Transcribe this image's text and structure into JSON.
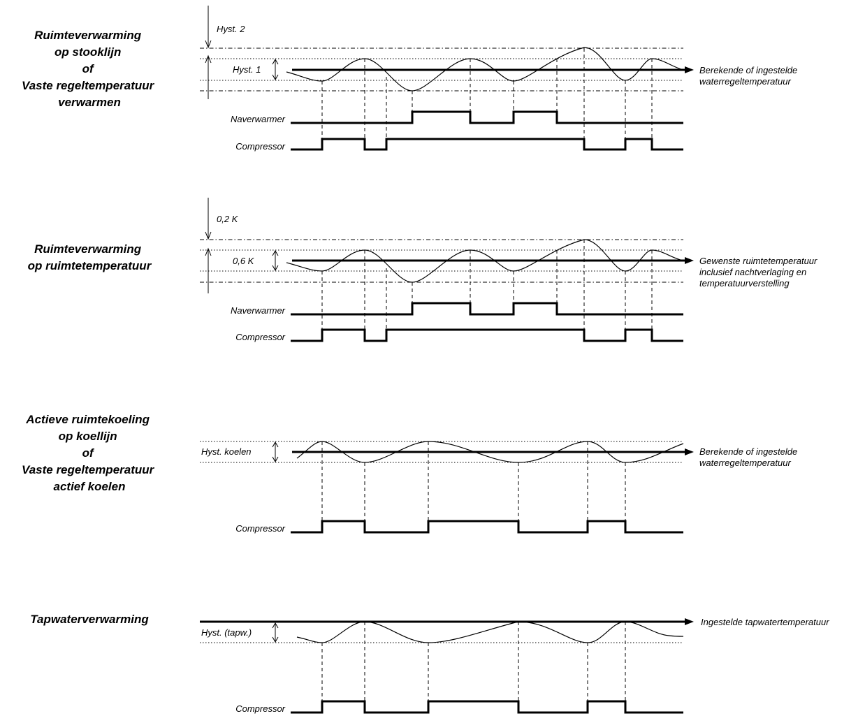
{
  "sections": [
    {
      "title_lines": [
        "Ruimteverwarming",
        "op stooklijn",
        "of",
        "Vaste regeltemperatuur",
        "verwarmen"
      ],
      "outer_hysteresis_label": "Hyst. 2",
      "hysteresis_label": "Hyst. 1",
      "target_note_lines": [
        "Berekende of ingestelde",
        "waterregeltemperatuur"
      ],
      "signals": [
        {
          "label": "Naverwarmer",
          "on_intervals": [
            [
              590,
              673
            ],
            [
              735,
              797
            ]
          ]
        },
        {
          "label": "Compressor",
          "on_intervals": [
            [
              461,
              522
            ],
            [
              553,
              836
            ],
            [
              895,
              933
            ]
          ]
        }
      ]
    },
    {
      "title_lines": [
        "Ruimteverwarming",
        "op ruimtetemperatuur"
      ],
      "outer_hysteresis_label": "0,2 K",
      "hysteresis_label": "0,6 K",
      "target_note_lines": [
        "Gewenste ruimtetemperatuur",
        "inclusief nachtverlaging en",
        "temperatuurverstelling"
      ],
      "signals": [
        {
          "label": "Naverwarmer",
          "on_intervals": [
            [
              590,
              673
            ],
            [
              735,
              797
            ]
          ]
        },
        {
          "label": "Compressor",
          "on_intervals": [
            [
              461,
              522
            ],
            [
              553,
              836
            ],
            [
              895,
              933
            ]
          ]
        }
      ]
    },
    {
      "title_lines": [
        "Actieve ruimtekoeling",
        "op koellijn",
        "of",
        "Vaste regeltemperatuur",
        "actief koelen"
      ],
      "hysteresis_label": "Hyst. koelen",
      "target_note_lines": [
        "Berekende of ingestelde",
        "waterregeltemperatuur"
      ],
      "signals": [
        {
          "label": "Compressor",
          "on_intervals": [
            [
              461,
              522
            ],
            [
              613,
              742
            ],
            [
              841,
              895
            ]
          ]
        }
      ]
    },
    {
      "title_lines": [
        "Tapwaterverwarming"
      ],
      "hysteresis_label": "Hyst. (tapw.)",
      "target_note_lines": [
        "Ingestelde tapwatertemperatuur"
      ],
      "signals": [
        {
          "label": "Compressor",
          "on_intervals": [
            [
              461,
              522
            ],
            [
              613,
              742
            ],
            [
              841,
              895
            ]
          ]
        }
      ]
    }
  ]
}
